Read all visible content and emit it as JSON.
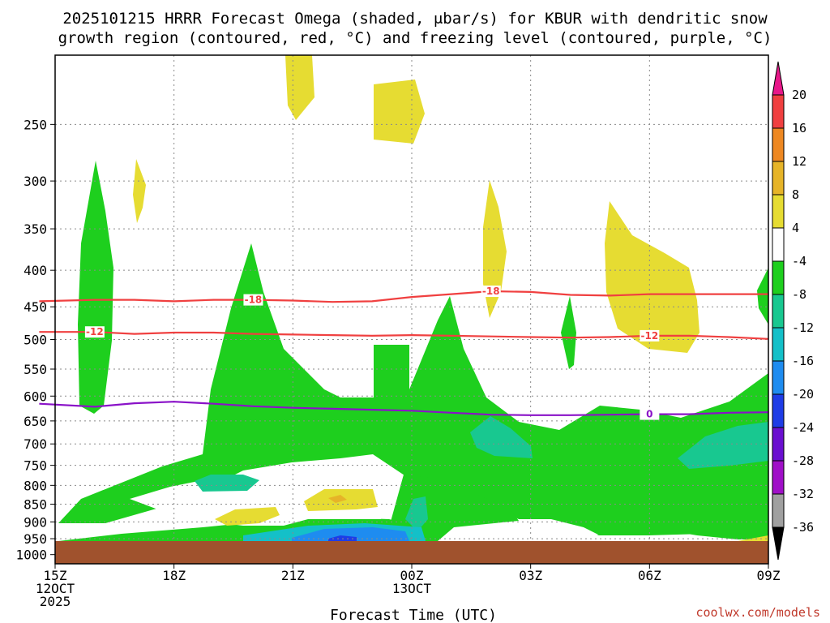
{
  "chart_data": {
    "type": "time-height cross section (filled contour)",
    "title_line1": "2025101215 HRRR Forecast Omega (shaded, μbar/s) for KBUR with dendritic snow",
    "title_line2": "growth region (contoured, red, °C) and freezing level (contoured, purple, °C)",
    "xlabel": "Forecast Time (UTC)",
    "credit": "coolwx.com/models",
    "x_hours": [
      0,
      3,
      6,
      9,
      12,
      15,
      18
    ],
    "x_ticks": [
      {
        "h": 0,
        "lines": [
          "15Z",
          "12OCT",
          "2025"
        ]
      },
      {
        "h": 3,
        "lines": [
          "18Z"
        ]
      },
      {
        "h": 6,
        "lines": [
          "21Z"
        ]
      },
      {
        "h": 9,
        "lines": [
          "00Z",
          "13OCT"
        ]
      },
      {
        "h": 12,
        "lines": [
          "03Z"
        ]
      },
      {
        "h": 15,
        "lines": [
          "06Z"
        ]
      },
      {
        "h": 18,
        "lines": [
          "09Z"
        ]
      }
    ],
    "y_levels_hpa": [
      250,
      300,
      350,
      400,
      450,
      500,
      550,
      600,
      650,
      700,
      750,
      800,
      850,
      900,
      950,
      1000
    ],
    "y_range_hpa": [
      200,
      1030
    ],
    "ground_level_hpa": 970,
    "colorbar": {
      "labels": [
        "20",
        "16",
        "12",
        "8",
        "4",
        "-4",
        "-8",
        "-12",
        "-16",
        "-20",
        "-24",
        "-28",
        "-32",
        "-36"
      ],
      "colors": [
        "#e8188a",
        "#f04040",
        "#ee8822",
        "#e6b428",
        "#e6dc32",
        "#ffffff",
        "#1ecf1e",
        "#18c890",
        "#14c0c8",
        "#1e8cf0",
        "#1e3ce6",
        "#6a10d0",
        "#a010c8",
        "#a0a0a0",
        "#000000"
      ]
    },
    "contours": [
      {
        "name": "-18 °C isotherm",
        "label": "-18",
        "color": "#f04040",
        "x": [
          -0.4,
          1,
          2,
          3,
          4,
          5,
          6,
          7,
          8,
          9,
          10,
          11,
          12,
          13,
          14,
          15,
          16,
          17,
          18
        ],
        "y": [
          442,
          440,
          440,
          442,
          440,
          440,
          441,
          443,
          442,
          436,
          432,
          428,
          429,
          433,
          434,
          432,
          432,
          432,
          432
        ],
        "label_positions": [
          5,
          11
        ]
      },
      {
        "name": "-12 °C isotherm",
        "label": "-12",
        "color": "#f04040",
        "x": [
          -0.4,
          1,
          2,
          3,
          4,
          5,
          6,
          7,
          8,
          9,
          10,
          11,
          12,
          13,
          14,
          15,
          16,
          17,
          18
        ],
        "y": [
          488,
          488,
          491,
          489,
          489,
          491,
          492,
          493,
          494,
          493,
          494,
          495,
          496,
          497,
          496,
          494,
          494,
          496,
          499
        ],
        "label_positions": [
          1,
          15
        ]
      },
      {
        "name": "0 °C freezing level",
        "label": "0",
        "color": "#8a12c8",
        "x": [
          -0.4,
          1,
          2,
          3,
          4,
          5,
          6,
          7,
          8,
          9,
          10,
          11,
          12,
          13,
          14,
          15,
          16,
          17,
          18
        ],
        "y": [
          615,
          621,
          614,
          611,
          615,
          620,
          623,
          625,
          627,
          629,
          633,
          637,
          638,
          638,
          637,
          636,
          636,
          633,
          632
        ],
        "label_positions": [
          15
        ]
      }
    ],
    "shaded_regions": [
      {
        "category": "4 to 8",
        "color": "#e6dc32",
        "centers": [
          {
            "hour": 6.2,
            "hpa": 230
          },
          {
            "hour": 8.2,
            "hpa": 240
          },
          {
            "hour": 2.1,
            "hpa": 320
          },
          {
            "hour": 11.2,
            "hpa": 370
          },
          {
            "hour": 15.9,
            "hpa": 430
          },
          {
            "hour": 4.7,
            "hpa": 890
          },
          {
            "hour": 6.8,
            "hpa": 860
          }
        ]
      },
      {
        "category": "-8 to -4",
        "color": "#1ecf1e",
        "centers": [
          {
            "hour": 1.1,
            "hpa": 480
          },
          {
            "hour": 3.9,
            "hpa": 560
          },
          {
            "hour": 9.6,
            "hpa": 560
          },
          {
            "hour": 12.9,
            "hpa": 510
          },
          {
            "hour": 18,
            "hpa": 500
          },
          {
            "hour": 9.5,
            "hpa": 740
          },
          {
            "hour": 16,
            "hpa": 940
          }
        ]
      },
      {
        "category": "-12 to -8",
        "color": "#18c890",
        "centers": [
          {
            "hour": 3.3,
            "hpa": 810
          },
          {
            "hour": 11.9,
            "hpa": 720
          },
          {
            "hour": 16.8,
            "hpa": 730
          },
          {
            "hour": 9.1,
            "hpa": 920
          }
        ]
      },
      {
        "category": "-16 to -12",
        "color": "#14c0c8",
        "centers": [
          {
            "hour": 6.8,
            "hpa": 962
          }
        ]
      },
      {
        "category": "-20 to -16",
        "color": "#1e8cf0",
        "centers": [
          {
            "hour": 7.0,
            "hpa": 966
          }
        ]
      },
      {
        "category": "-24 to -20",
        "color": "#1e3ce6",
        "centers": [
          {
            "hour": 7.1,
            "hpa": 968
          }
        ]
      },
      {
        "category": "8 to 12",
        "color": "#e6b428",
        "centers": [
          {
            "hour": 6.8,
            "hpa": 855
          }
        ]
      }
    ]
  }
}
